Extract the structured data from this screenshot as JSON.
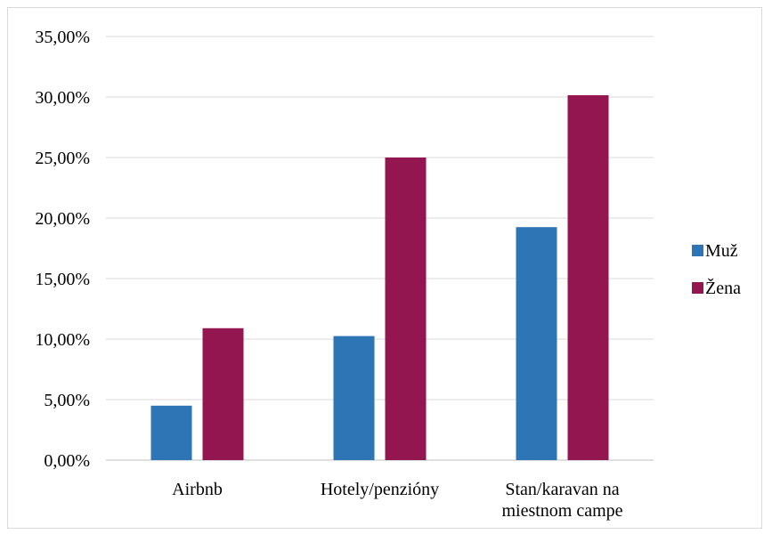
{
  "chart_data": {
    "type": "bar",
    "categories": [
      "Airbnb",
      "Hotely/penzióny",
      "Stan/karavan na miestnom campe"
    ],
    "category_label_lines": [
      [
        "Airbnb"
      ],
      [
        "Hotely/penzióny"
      ],
      [
        "Stan/karavan na",
        "miestnom campe"
      ]
    ],
    "series": [
      {
        "name": "Muž",
        "color": "#2e75b6",
        "values": [
          4.5,
          10.25,
          19.25
        ]
      },
      {
        "name": "Žena",
        "color": "#941651",
        "values": [
          10.9,
          25.0,
          30.15
        ]
      }
    ],
    "ylim": [
      0,
      35
    ],
    "yticks": [
      0,
      5,
      10,
      15,
      20,
      25,
      30,
      35
    ],
    "ytick_labels": [
      "0,00%",
      "5,00%",
      "10,00%",
      "15,00%",
      "20,00%",
      "25,00%",
      "30,00%",
      "35,00%"
    ],
    "grid": true,
    "legend_position": "right",
    "title": "",
    "xlabel": "",
    "ylabel": ""
  }
}
